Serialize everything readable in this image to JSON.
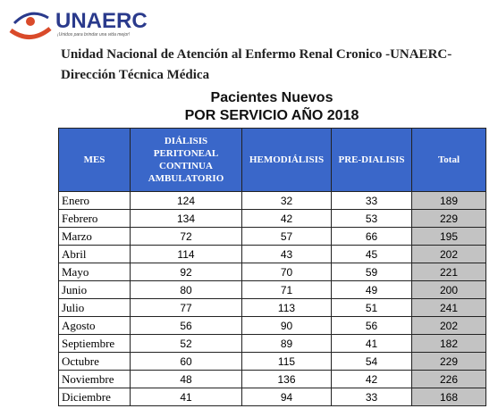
{
  "logo": {
    "name": "UNAERC",
    "tagline": "¡Unidos para brindar una vida mejor!"
  },
  "header": {
    "line1": "Unidad Nacional de Atención al Enfermo Renal Cronico -UNAERC-",
    "line2": "Dirección Técnica Médica"
  },
  "title": {
    "line1": "Pacientes Nuevos",
    "line2": "POR SERVICIO AÑO 2018"
  },
  "table": {
    "columns": [
      "MES",
      "DIÁLISIS PERITONEAL CONTINUA AMBULATORIO",
      "HEMODIÁLISIS",
      "PRE-DIALISIS",
      "Total"
    ],
    "rows": [
      [
        "Enero",
        124,
        32,
        33,
        189
      ],
      [
        "Febrero",
        134,
        42,
        53,
        229
      ],
      [
        "Marzo",
        72,
        57,
        66,
        195
      ],
      [
        "Abril",
        114,
        43,
        45,
        202
      ],
      [
        "Mayo",
        92,
        70,
        59,
        221
      ],
      [
        "Junio",
        80,
        71,
        49,
        200
      ],
      [
        "Julio",
        77,
        113,
        51,
        241
      ],
      [
        "Agosto",
        56,
        90,
        56,
        202
      ],
      [
        "Septiembre",
        52,
        89,
        41,
        182
      ],
      [
        "Octubre",
        60,
        115,
        54,
        229
      ],
      [
        "Noviembre",
        48,
        136,
        42,
        226
      ],
      [
        "Diciembre",
        41,
        94,
        33,
        168
      ]
    ]
  }
}
